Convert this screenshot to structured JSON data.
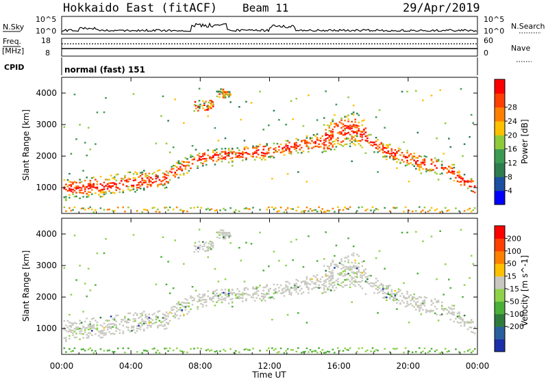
{
  "header": {
    "station": "Hokkaido East (fitACF)",
    "beam": "Beam 11",
    "date": "29/Apr/2019"
  },
  "noise_panel": {
    "left_label": "N.Sky",
    "right_label": "N.Search",
    "left_ticks": [
      "10^5",
      "10^0"
    ],
    "right_ticks": [
      "10^5",
      "10^0"
    ]
  },
  "freq_panel": {
    "left_label_1": "Freq.",
    "left_label_2": "[MHz]",
    "right_label": "Nave",
    "left_ticks": [
      "18",
      "8"
    ],
    "right_ticks": [
      "60",
      "0"
    ]
  },
  "cpid_panel": {
    "label": "CPID",
    "text": "normal (fast) 151"
  },
  "chart_data": [
    {
      "type": "heatmap",
      "name": "power",
      "ylabel": "Slant Range [km]",
      "ylim": [
        180,
        4500
      ],
      "yticks": [
        "1000",
        "2000",
        "3000",
        "4000"
      ],
      "xlim": [
        "00:00",
        "24:00"
      ],
      "xticks": [
        "00:00",
        "04:00",
        "08:00",
        "12:00",
        "16:00",
        "20:00",
        "00:00"
      ],
      "colorbar": {
        "label": "Power [dB]",
        "ticks": [
          "4",
          "8",
          "12",
          "16",
          "20",
          "24",
          "28"
        ],
        "colors": [
          "#0000ff",
          "#1b4fa0",
          "#2e7d4f",
          "#3c9a53",
          "#8fca3b",
          "#ffc000",
          "#ff8000",
          "#ff4000",
          "#ff0000"
        ]
      },
      "echo_band": {
        "time_h": [
          0,
          1,
          2,
          3,
          4,
          5,
          6,
          7,
          8,
          9,
          10,
          11,
          12,
          13,
          14,
          15,
          16,
          17,
          18,
          19,
          20,
          21,
          22,
          23,
          24
        ],
        "range_km": [
          950,
          1000,
          1050,
          1100,
          1200,
          1250,
          1350,
          1700,
          1950,
          2050,
          2100,
          2150,
          2200,
          2300,
          2400,
          2500,
          2800,
          2900,
          2400,
          2150,
          1950,
          1800,
          1700,
          1300,
          1000
        ]
      }
    },
    {
      "type": "heatmap",
      "name": "velocity",
      "ylabel": "Slant Range [km]",
      "ylim": [
        180,
        4500
      ],
      "yticks": [
        "1000",
        "2000",
        "3000",
        "4000"
      ],
      "xlim": [
        "00:00",
        "24:00"
      ],
      "xticks": [
        "00:00",
        "04:00",
        "08:00",
        "12:00",
        "16:00",
        "20:00",
        "00:00"
      ],
      "xlabel": "Time UT",
      "colorbar": {
        "label": "Velocity [m s^-1]",
        "ticks": [
          "200",
          "100",
          "50",
          "15",
          "-15",
          "-50",
          "-100",
          "-200"
        ],
        "colors": [
          "#1c2fa8",
          "#2a5f9e",
          "#2d7c3d",
          "#4caf3a",
          "#8fd24a",
          "#c8c8c0",
          "#ffc000",
          "#ff8000",
          "#ff4000",
          "#ff0000"
        ]
      }
    }
  ]
}
